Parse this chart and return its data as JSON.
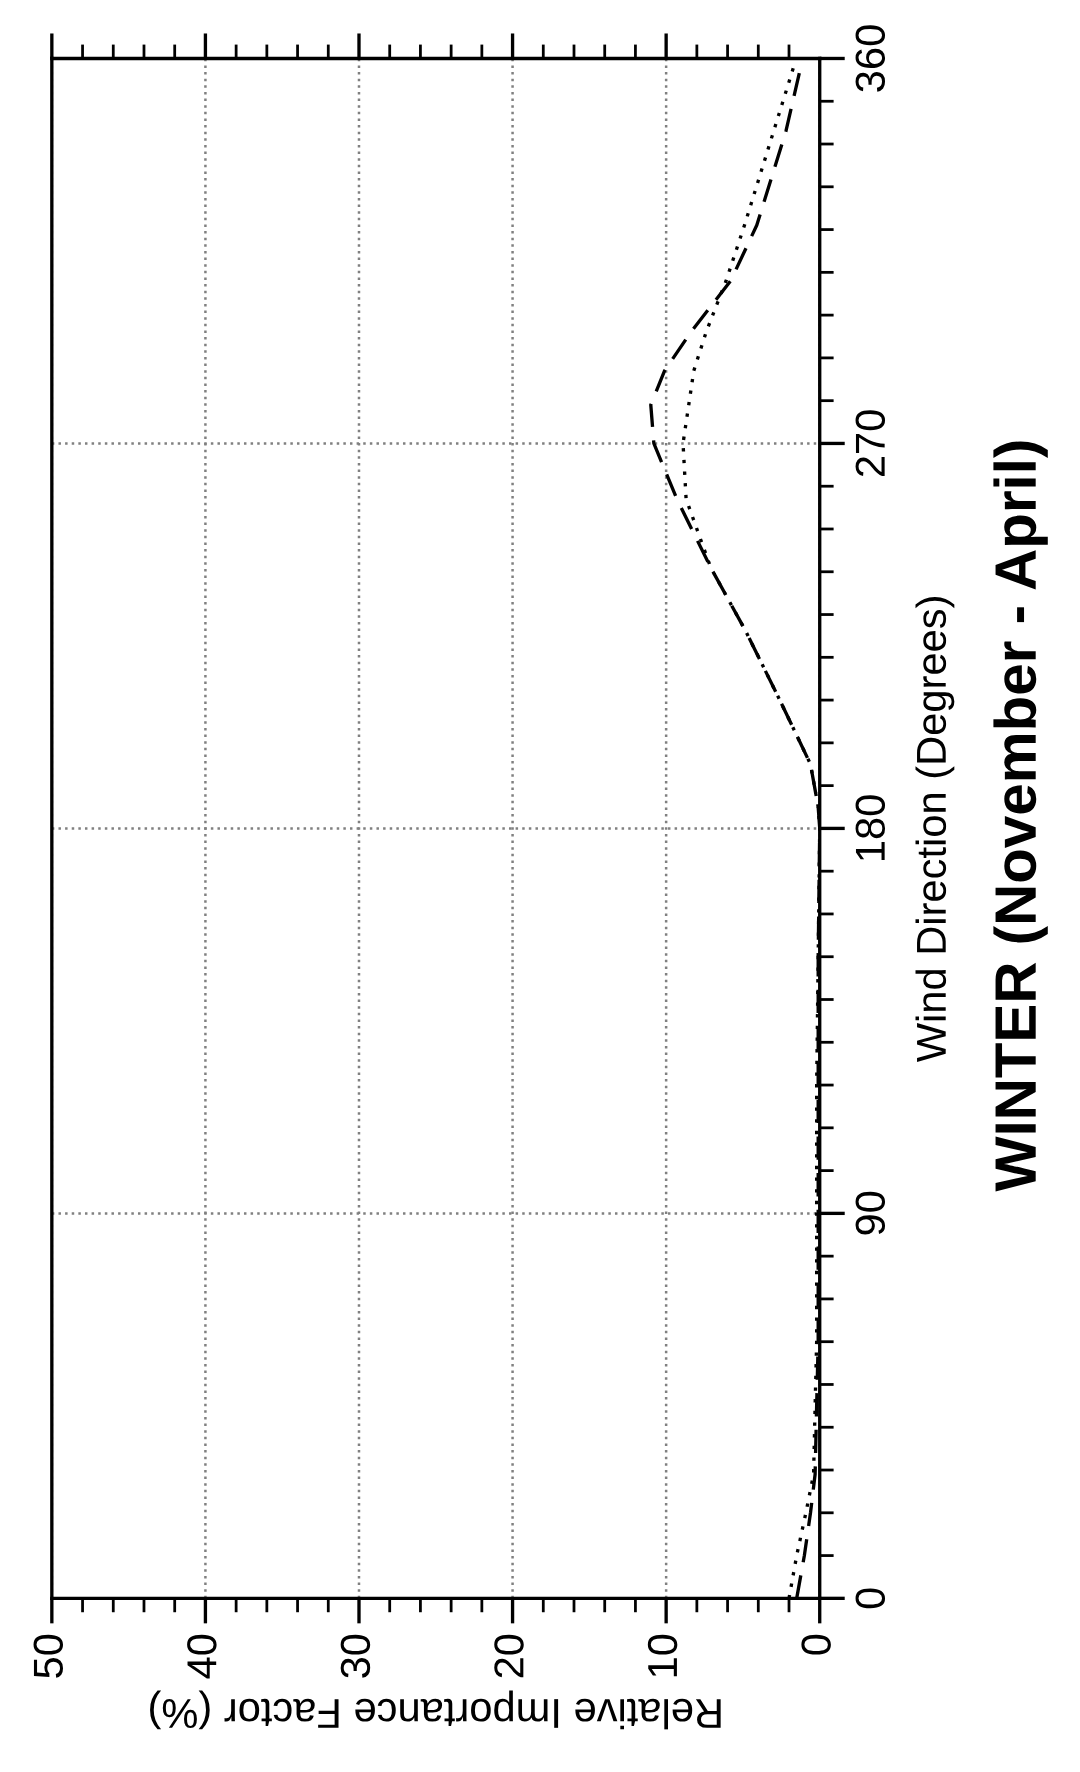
{
  "chart_data": {
    "type": "line",
    "title": "WINTER (November - April)",
    "xlabel": "Relative Importance Factor (%)",
    "ylabel": "Wind Direction (Degrees)",
    "xlim": [
      50,
      0
    ],
    "xticks": [
      0,
      10,
      20,
      30,
      40,
      50
    ],
    "ylim": [
      0,
      360
    ],
    "yticks": [
      0,
      90,
      180,
      270,
      360
    ],
    "grid": true,
    "legend": false,
    "marker": "none",
    "series": [
      {
        "color": "#000000",
        "line_style": "dashed",
        "values": [
          0,
          10,
          20,
          29,
          45,
          60,
          90,
          120,
          150,
          180,
          185,
          195,
          210,
          226,
          241,
          257,
          270,
          279,
          287,
          296,
          308,
          321,
          343,
          357
        ],
        "x": [
          1.5,
          1.0,
          0.6,
          0.3,
          0.2,
          0.1,
          0.1,
          0.1,
          0.1,
          0.0,
          0.1,
          0.6,
          2.6,
          4.8,
          7.1,
          9.3,
          10.8,
          11.0,
          10.1,
          8.4,
          5.8,
          4.1,
          2.2,
          1.3
        ]
      },
      {
        "color": "#000000",
        "line_style": "dotted",
        "values": [
          0,
          10,
          20,
          29,
          45,
          60,
          90,
          120,
          150,
          180,
          185,
          195,
          210,
          226,
          241,
          257,
          270,
          287,
          296,
          308,
          321,
          343,
          358
        ],
        "x": [
          2.0,
          1.5,
          0.9,
          0.4,
          0.3,
          0.2,
          0.2,
          0.2,
          0.1,
          0.0,
          0.1,
          0.6,
          2.6,
          4.8,
          7.1,
          8.7,
          8.9,
          8.2,
          7.4,
          6.1,
          4.9,
          3.0,
          1.7
        ]
      }
    ]
  }
}
